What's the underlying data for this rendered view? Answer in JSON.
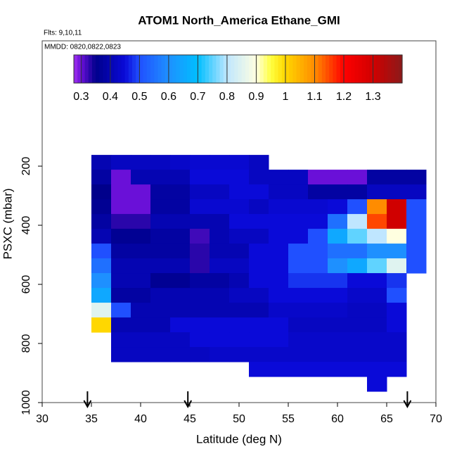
{
  "chart_data": {
    "type": "heatmap",
    "title": "ATOM1 North_America Ethane_GMI",
    "flights": "Flts: 9,10,11",
    "dates": "MMDD: 0820,0822,0823",
    "xlabel": "Latitude (deg N)",
    "ylabel": "PSXC (mbar)",
    "xlim": [
      30,
      70
    ],
    "xticks": [
      30,
      35,
      40,
      45,
      50,
      55,
      60,
      65,
      70
    ],
    "ylim": [
      1000,
      -224
    ],
    "yticks": [
      200,
      400,
      600,
      800,
      1000
    ],
    "x_edges": [
      35,
      37,
      39,
      41,
      43,
      45,
      47,
      49,
      51,
      53,
      55,
      57,
      59,
      61,
      63,
      65,
      67,
      69
    ],
    "y_edges": [
      162,
      212,
      262,
      312,
      362,
      412,
      462,
      512,
      562,
      612,
      662,
      712,
      762,
      812,
      862,
      912,
      962
    ],
    "values": [
      [
        0.4,
        0.42,
        0.42,
        0.42,
        0.43,
        0.44,
        0.44,
        0.44,
        0.42,
        null,
        null,
        null,
        null,
        null,
        null,
        null,
        null
      ],
      [
        0.38,
        0.3,
        0.4,
        0.4,
        0.4,
        0.45,
        0.45,
        0.45,
        0.42,
        0.42,
        0.42,
        0.3,
        0.3,
        0.3,
        0.38,
        0.38,
        0.38
      ],
      [
        0.35,
        0.3,
        0.3,
        0.38,
        0.38,
        0.42,
        0.42,
        0.45,
        0.45,
        0.42,
        0.42,
        0.38,
        0.38,
        0.38,
        0.42,
        0.42,
        0.42
      ],
      [
        0.36,
        0.3,
        0.3,
        0.38,
        0.38,
        0.44,
        0.44,
        0.44,
        0.42,
        0.44,
        0.44,
        0.44,
        0.45,
        0.5,
        1.1,
        1.3,
        0.5
      ],
      [
        0.38,
        0.33,
        0.33,
        0.4,
        0.4,
        0.4,
        0.4,
        0.45,
        0.45,
        0.45,
        0.45,
        0.45,
        0.55,
        0.8,
        1.15,
        1.3,
        0.5
      ],
      [
        0.4,
        0.36,
        0.36,
        0.38,
        0.38,
        0.32,
        0.4,
        0.42,
        0.42,
        0.45,
        0.45,
        0.5,
        0.65,
        0.75,
        0.8,
        0.9,
        0.5
      ],
      [
        0.5,
        0.38,
        0.38,
        0.38,
        0.38,
        0.33,
        0.4,
        0.4,
        0.45,
        0.45,
        0.5,
        0.5,
        0.55,
        0.55,
        0.6,
        0.6,
        0.5
      ],
      [
        0.55,
        0.4,
        0.4,
        0.4,
        0.4,
        0.33,
        0.42,
        0.42,
        0.45,
        0.45,
        0.5,
        0.5,
        0.6,
        0.65,
        0.75,
        0.85,
        0.5
      ],
      [
        0.6,
        0.4,
        0.4,
        0.36,
        0.36,
        0.38,
        0.38,
        0.4,
        0.45,
        0.45,
        0.48,
        0.48,
        0.48,
        0.45,
        0.45,
        0.48,
        null
      ],
      [
        0.65,
        0.38,
        0.38,
        0.4,
        0.4,
        0.4,
        0.4,
        0.42,
        0.42,
        0.45,
        0.45,
        0.45,
        0.45,
        0.43,
        0.43,
        0.5,
        null
      ],
      [
        0.85,
        0.5,
        0.4,
        0.4,
        0.4,
        0.4,
        0.4,
        0.4,
        0.4,
        0.43,
        0.43,
        0.43,
        0.43,
        0.42,
        0.42,
        0.45,
        null
      ],
      [
        1.0,
        0.4,
        0.4,
        0.4,
        0.45,
        0.45,
        0.45,
        0.45,
        0.45,
        0.45,
        0.42,
        0.42,
        0.42,
        0.42,
        0.42,
        0.45,
        null
      ],
      [
        null,
        0.42,
        0.42,
        0.42,
        0.42,
        0.45,
        0.45,
        0.45,
        0.45,
        0.45,
        0.43,
        0.43,
        0.43,
        0.43,
        0.43,
        0.43,
        null
      ],
      [
        null,
        0.42,
        0.42,
        0.42,
        0.42,
        0.42,
        0.43,
        0.43,
        0.43,
        0.43,
        0.43,
        0.43,
        0.43,
        0.43,
        0.43,
        0.43,
        null
      ],
      [
        null,
        null,
        null,
        null,
        null,
        null,
        null,
        null,
        0.45,
        0.45,
        0.45,
        0.45,
        0.45,
        0.45,
        0.45,
        0.45,
        null
      ],
      [
        null,
        null,
        null,
        null,
        null,
        null,
        null,
        null,
        null,
        null,
        null,
        null,
        null,
        null,
        0.45,
        null,
        null
      ]
    ],
    "colorbar": {
      "lim": [
        0.275,
        1.4
      ],
      "ticks": [
        0.3,
        0.4,
        0.5,
        0.6,
        0.7,
        0.8,
        0.9,
        1.0,
        1.1,
        1.2,
        1.3
      ]
    },
    "colorscale": [
      [
        0.275,
        "#a030f0"
      ],
      [
        0.3,
        "#6a10d8"
      ],
      [
        0.35,
        "#00008b"
      ],
      [
        0.45,
        "#0a0ad8"
      ],
      [
        0.5,
        "#2050ff"
      ],
      [
        0.6,
        "#1e90ff"
      ],
      [
        0.7,
        "#00bfff"
      ],
      [
        0.8,
        "#bfe6ff"
      ],
      [
        0.9,
        "#ffffe0"
      ],
      [
        0.95,
        "#ffff40"
      ],
      [
        1.0,
        "#ffd700"
      ],
      [
        1.1,
        "#ff8c00"
      ],
      [
        1.2,
        "#ff0000"
      ],
      [
        1.3,
        "#d00000"
      ],
      [
        1.4,
        "#8b1a1a"
      ]
    ],
    "arrows": [
      34.6,
      44.8,
      67.1
    ]
  }
}
